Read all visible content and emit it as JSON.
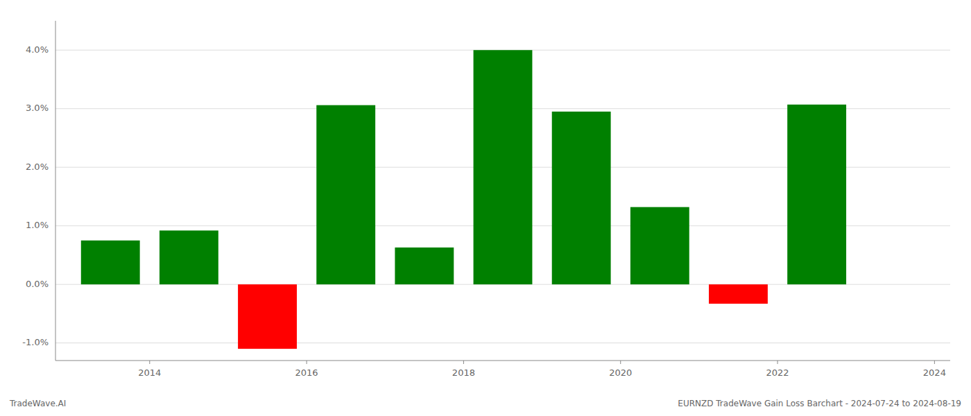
{
  "chart_data": {
    "type": "bar",
    "x": [
      2013.5,
      2014.5,
      2015.5,
      2016.5,
      2017.5,
      2018.5,
      2019.5,
      2020.5,
      2021.5,
      2022.5
    ],
    "values": [
      0.0075,
      0.0092,
      -0.011,
      0.0306,
      0.0063,
      0.04,
      0.0295,
      0.0132,
      -0.0033,
      0.0307
    ],
    "colors": [
      "#008000",
      "#008000",
      "#ff0000",
      "#008000",
      "#008000",
      "#008000",
      "#008000",
      "#008000",
      "#ff0000",
      "#008000"
    ],
    "xlim": [
      2012.8,
      2024.2
    ],
    "xticks": [
      2014,
      2016,
      2018,
      2020,
      2022,
      2024
    ],
    "ylim": [
      -0.013,
      0.045
    ],
    "yticks": [
      {
        "value": -0.01,
        "label": "-1.0%"
      },
      {
        "value": 0.0,
        "label": "0.0%"
      },
      {
        "value": 0.01,
        "label": "1.0%"
      },
      {
        "value": 0.02,
        "label": "2.0%"
      },
      {
        "value": 0.03,
        "label": "3.0%"
      },
      {
        "value": 0.04,
        "label": "4.0%"
      }
    ],
    "grid": true,
    "annotations": [
      "TradeWave.AI",
      "EURNZD TradeWave Gain Loss Barchart - 2024-07-24 to 2024-08-19"
    ]
  }
}
